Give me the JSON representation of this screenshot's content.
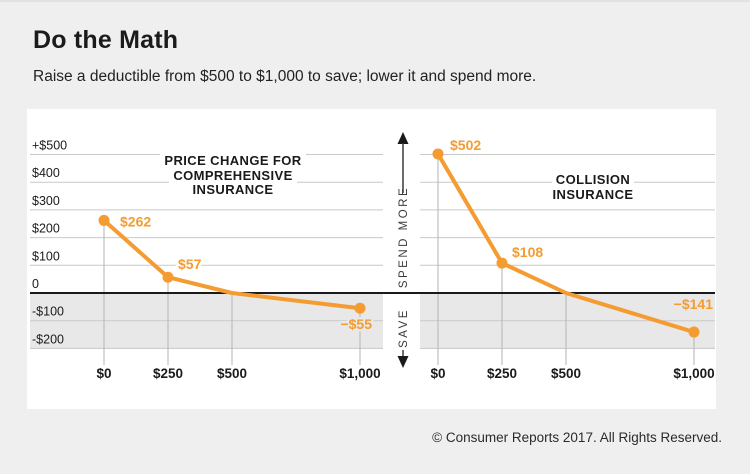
{
  "header": {
    "title": "Do the Math",
    "subtitle": "Raise a deductible from $500 to $1,000 to save; lower it and spend more."
  },
  "divider": {
    "spend_more_label": "SPEND MORE",
    "save_label": "SAVE"
  },
  "footer": {
    "copyright": "© Consumer Reports 2017. All Rights Reserved."
  },
  "colors": {
    "accent_orange": "#F49B31",
    "gridline": "#C9C9C9",
    "tick_line": "#B3B3B3",
    "zero_line": "#1A1A1A",
    "save_band_gray": "#E8E8E8",
    "background": "#EFEFEF",
    "card": "#FFFFFF",
    "text_dark": "#1A1A1A"
  },
  "chart_data": [
    {
      "type": "line",
      "title": "PRICE CHANGE FOR COMPREHENSIVE INSURANCE",
      "title_lines": [
        "PRICE CHANGE FOR",
        "COMPREHENSIVE",
        "INSURANCE"
      ],
      "x_tick_labels": [
        "$0",
        "$250",
        "$500",
        "$1,000"
      ],
      "x_values": [
        0,
        250,
        500,
        1000
      ],
      "values": [
        262,
        57,
        0,
        -55
      ],
      "point_labels": [
        "$262",
        "$57",
        "",
        "−$55"
      ],
      "markers": [
        true,
        true,
        false,
        true
      ],
      "y_tick_labels": [
        "+$500",
        "$400",
        "$300",
        "$200",
        "$100",
        "0",
        "-$100",
        "-$200"
      ],
      "y_tick_values": [
        500,
        400,
        300,
        200,
        100,
        0,
        -100,
        -200
      ],
      "ylim": [
        -250,
        550
      ],
      "grid": true,
      "legend": "none"
    },
    {
      "type": "line",
      "title": "COLLISION INSURANCE",
      "title_lines": [
        "COLLISION",
        "INSURANCE"
      ],
      "x_tick_labels": [
        "$0",
        "$250",
        "$500",
        "$1,000"
      ],
      "x_values": [
        0,
        250,
        500,
        1000
      ],
      "values": [
        502,
        108,
        0,
        -141
      ],
      "point_labels": [
        "$502",
        "$108",
        "",
        "−$141"
      ],
      "markers": [
        true,
        true,
        false,
        true
      ],
      "y_tick_labels": [
        "+$500",
        "$400",
        "$300",
        "$200",
        "$100",
        "0",
        "-$100",
        "-$200"
      ],
      "y_tick_values": [
        500,
        400,
        300,
        200,
        100,
        0,
        -100,
        -200
      ],
      "ylim": [
        -250,
        550
      ],
      "grid": true,
      "legend": "none"
    }
  ]
}
